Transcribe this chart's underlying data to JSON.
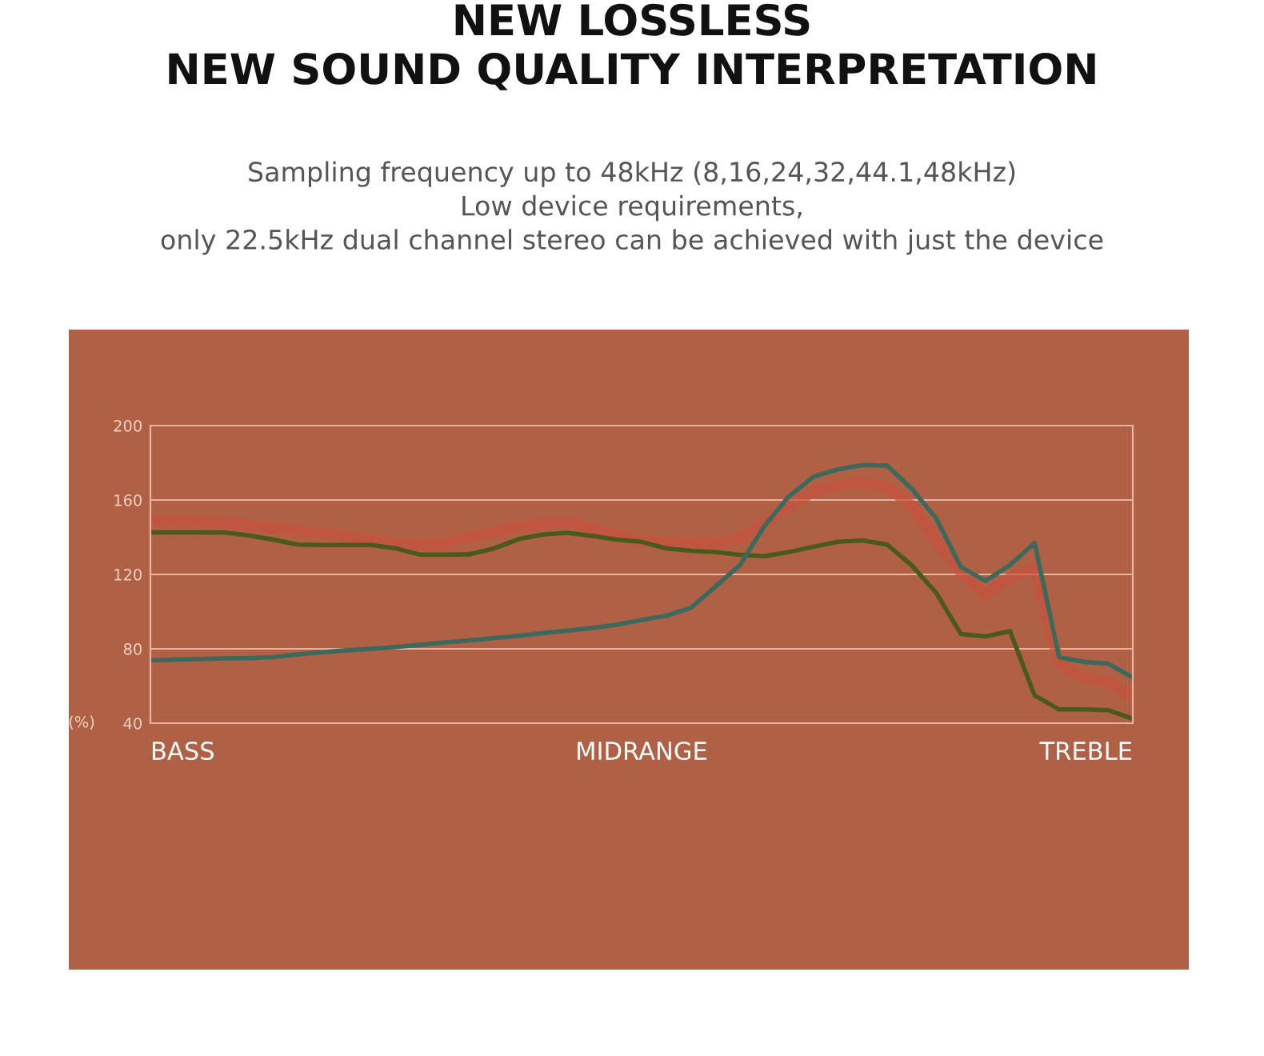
{
  "chart_data": {
    "type": "line",
    "title": "NEW LOSSLESS\nNEW SOUND QUALITY INTERPRETATION",
    "subtitle": "Sampling frequency up to 48kHz (8,16,24,32,44.1,48kHz)\nLow device requirements,\nonly 22.5kHz dual channel stereo can be achieved with just the device",
    "ylabel": "(%)",
    "annotations": [
      "BASS",
      "MIDRANGE",
      "TREBLE"
    ],
    "categories": [
      null,
      null,
      null,
      null,
      null,
      null,
      null,
      null,
      null,
      null,
      null,
      null,
      null,
      null,
      null,
      null,
      null,
      null,
      null,
      null,
      null,
      null,
      null,
      null,
      null,
      null,
      null,
      null,
      null,
      null,
      null,
      null,
      null,
      null,
      null,
      null,
      null,
      null,
      null,
      null,
      null
    ],
    "series": [
      {
        "color": "#c9523f",
        "values": [
          149.2,
          149,
          148.6,
          148,
          146.5,
          145,
          143.5,
          142.3,
          140.5,
          138.5,
          136.5,
          135.8,
          136.8,
          140,
          143,
          145.5,
          147.5,
          147.8,
          145,
          141,
          138,
          137.5,
          137,
          136.5,
          139,
          148,
          157,
          164.5,
          168,
          169.3,
          167,
          157,
          138,
          121,
          109,
          118,
          124,
          72,
          64.7,
          62,
          54.6
        ]
      },
      {
        "color": "#4a5a1c",
        "values": [
          142.6,
          142.6,
          142.6,
          142.6,
          141,
          138.7,
          136,
          135.8,
          135.8,
          135.8,
          134,
          130.6,
          130.6,
          130.8,
          134,
          139,
          141.5,
          142.4,
          140.6,
          138.7,
          137.5,
          134,
          132.7,
          132,
          130.5,
          129.8,
          132,
          134.9,
          137.5,
          138.3,
          136,
          124.9,
          110,
          88,
          86.7,
          89.5,
          55,
          47.4,
          47.4,
          47,
          42.3
        ]
      },
      {
        "color": "#3b6a5c",
        "values": [
          73.8,
          74.2,
          74.5,
          74.8,
          75,
          75.5,
          77,
          78.2,
          79.2,
          80,
          81,
          82.2,
          83.4,
          84.5,
          85.8,
          87,
          88.5,
          89.8,
          91.2,
          93,
          95.5,
          97.8,
          102,
          113.4,
          125,
          146,
          162,
          172.5,
          176.5,
          178.8,
          178.5,
          166,
          150,
          124,
          116.5,
          125,
          136.9,
          75.5,
          73,
          72,
          64.5
        ]
      }
    ],
    "ylim": [
      40,
      200
    ],
    "yticks": [
      40,
      80,
      120,
      160,
      200
    ],
    "grid": "y"
  }
}
